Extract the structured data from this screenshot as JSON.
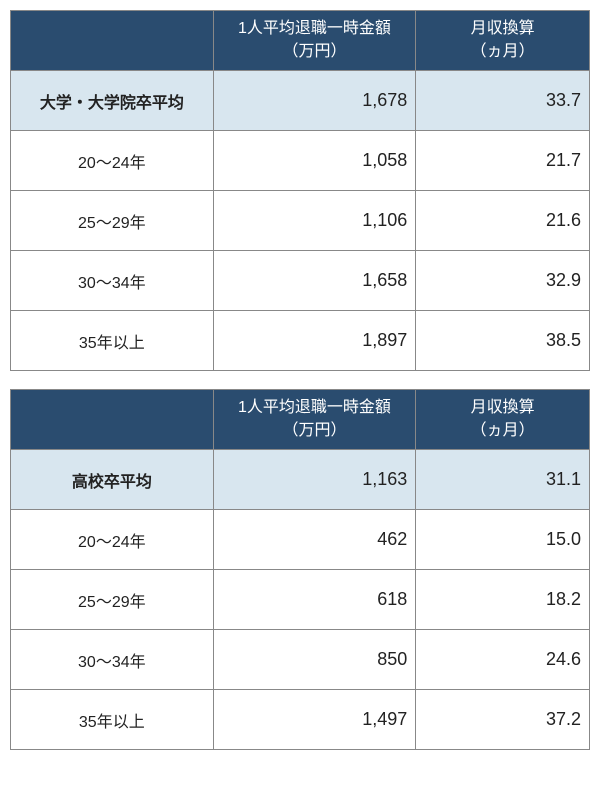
{
  "tables": [
    {
      "headers": {
        "col1": "",
        "col2": "1人平均退職一時金額\n（万円）",
        "col3": "月収換算\n（ヵ月）"
      },
      "rows": [
        {
          "highlight": true,
          "label": "大学・大学院卒平均",
          "amount": "1,678",
          "months": "33.7"
        },
        {
          "highlight": false,
          "label": "20～24年",
          "amount": "1,058",
          "months": "21.7"
        },
        {
          "highlight": false,
          "label": "25～29年",
          "amount": "1,106",
          "months": "21.6"
        },
        {
          "highlight": false,
          "label": "30～34年",
          "amount": "1,658",
          "months": "32.9"
        },
        {
          "highlight": false,
          "label": "35年以上",
          "amount": "1,897",
          "months": "38.5"
        }
      ]
    },
    {
      "headers": {
        "col1": "",
        "col2": "1人平均退職一時金額\n（万円）",
        "col3": "月収換算\n（ヵ月）"
      },
      "rows": [
        {
          "highlight": true,
          "label": "高校卒平均",
          "amount": "1,163",
          "months": "31.1"
        },
        {
          "highlight": false,
          "label": "20～24年",
          "amount": "462",
          "months": "15.0"
        },
        {
          "highlight": false,
          "label": "25～29年",
          "amount": "618",
          "months": "18.2"
        },
        {
          "highlight": false,
          "label": "30～34年",
          "amount": "850",
          "months": "24.6"
        },
        {
          "highlight": false,
          "label": "35年以上",
          "amount": "1,497",
          "months": "37.2"
        }
      ]
    }
  ],
  "style": {
    "header_bg": "#2a4c6f",
    "header_fg": "#ffffff",
    "highlight_bg": "#d8e6ef",
    "border_color": "#888888",
    "text_color": "#222222"
  }
}
